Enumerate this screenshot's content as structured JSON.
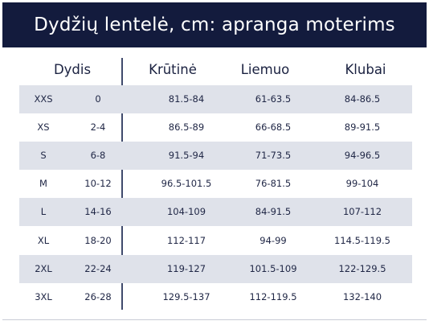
{
  "title": "Dydžių lentelė, cm: apranga moterims",
  "headers": {
    "size": "Dydis",
    "chest": "Krūtinė",
    "waist": "Liemuo",
    "hips": "Klubai"
  },
  "rows": [
    {
      "size": "XXS",
      "us": "0",
      "chest": "81.5-84",
      "waist": "61-63.5",
      "hips": "84-86.5"
    },
    {
      "size": "XS",
      "us": "2-4",
      "chest": "86.5-89",
      "waist": "66-68.5",
      "hips": "89-91.5"
    },
    {
      "size": "S",
      "us": "6-8",
      "chest": "91.5-94",
      "waist": "71-73.5",
      "hips": "94-96.5"
    },
    {
      "size": "M",
      "us": "10-12",
      "chest": "96.5-101.5",
      "waist": "76-81.5",
      "hips": "99-104"
    },
    {
      "size": "L",
      "us": "14-16",
      "chest": "104-109",
      "waist": "84-91.5",
      "hips": "107-112"
    },
    {
      "size": "XL",
      "us": "18-20",
      "chest": "112-117",
      "waist": "94-99",
      "hips": "114.5-119.5"
    },
    {
      "size": "2XL",
      "us": "22-24",
      "chest": "119-127",
      "waist": "101.5-109",
      "hips": "122-129.5"
    },
    {
      "size": "3XL",
      "us": "26-28",
      "chest": "129.5-137",
      "waist": "112-119.5",
      "hips": "132-140"
    }
  ],
  "colors": {
    "title_background": "#131b3d",
    "row_shade": "#dfe2ea",
    "text": "#1f2645",
    "divider": "#3f4a6c"
  }
}
